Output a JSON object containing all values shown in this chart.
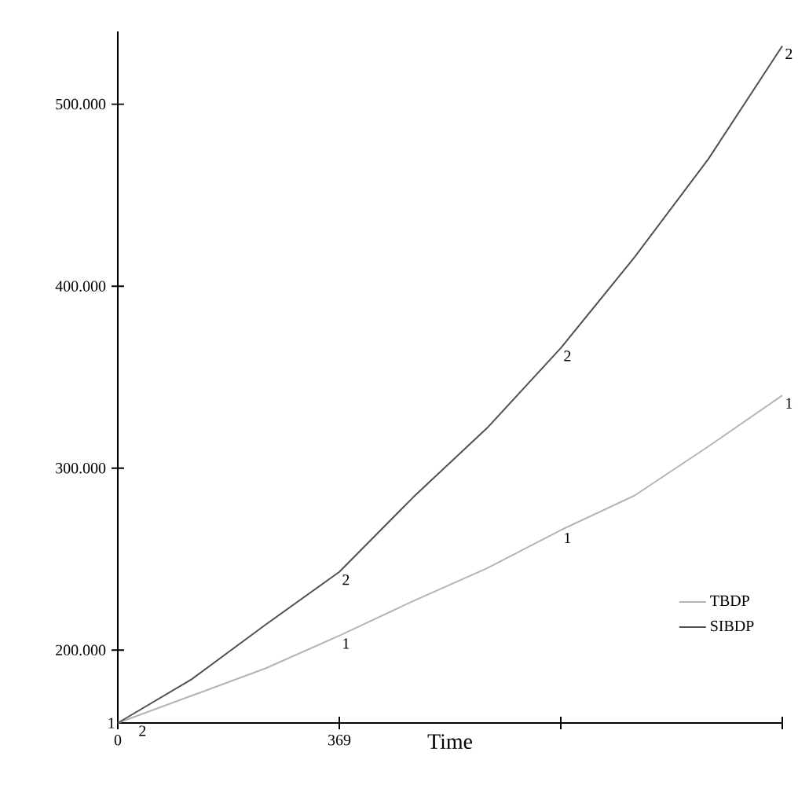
{
  "chart_data": {
    "type": "line",
    "xlabel": "Time",
    "x": [
      0,
      123,
      246,
      369,
      492,
      615,
      738,
      861,
      984,
      1107
    ],
    "series": [
      {
        "name": "TBDP",
        "color": "#b4b4b4",
        "values": [
          160000,
          175000,
          190000,
          208000,
          227000,
          245000,
          266000,
          285000,
          312000,
          340000
        ]
      },
      {
        "name": "SIBDP",
        "color": "#505050",
        "values": [
          160000,
          184000,
          214000,
          243000,
          284000,
          322000,
          366000,
          416000,
          470000,
          532000
        ]
      }
    ],
    "xlim": [
      0,
      1107
    ],
    "xticks": [
      0,
      369,
      {
        "value": 738,
        "label": null
      },
      {
        "value": 1107,
        "label": null
      }
    ],
    "ylim": [
      160000,
      540000
    ],
    "yticks": [
      {
        "value": 200000,
        "label": "200.000"
      },
      {
        "value": 300000,
        "label": "300.000"
      },
      {
        "value": 400000,
        "label": "400.000"
      },
      {
        "value": 500000,
        "label": "500.000"
      }
    ],
    "annotations": [
      {
        "text": "1",
        "x": 0,
        "y": 160000
      },
      {
        "text": "2",
        "x": 30,
        "y": 160000
      },
      {
        "text": "1",
        "x": 369,
        "y": 208000
      },
      {
        "text": "2",
        "x": 369,
        "y": 243000
      },
      {
        "text": "1",
        "x": 738,
        "y": 266000
      },
      {
        "text": "2",
        "x": 738,
        "y": 366000
      },
      {
        "text": "1",
        "x": 1107,
        "y": 340000
      },
      {
        "text": "2",
        "x": 1107,
        "y": 532000
      }
    ],
    "legend": "bottom right",
    "grid": false,
    "marker": "none",
    "line_style": "solid"
  }
}
